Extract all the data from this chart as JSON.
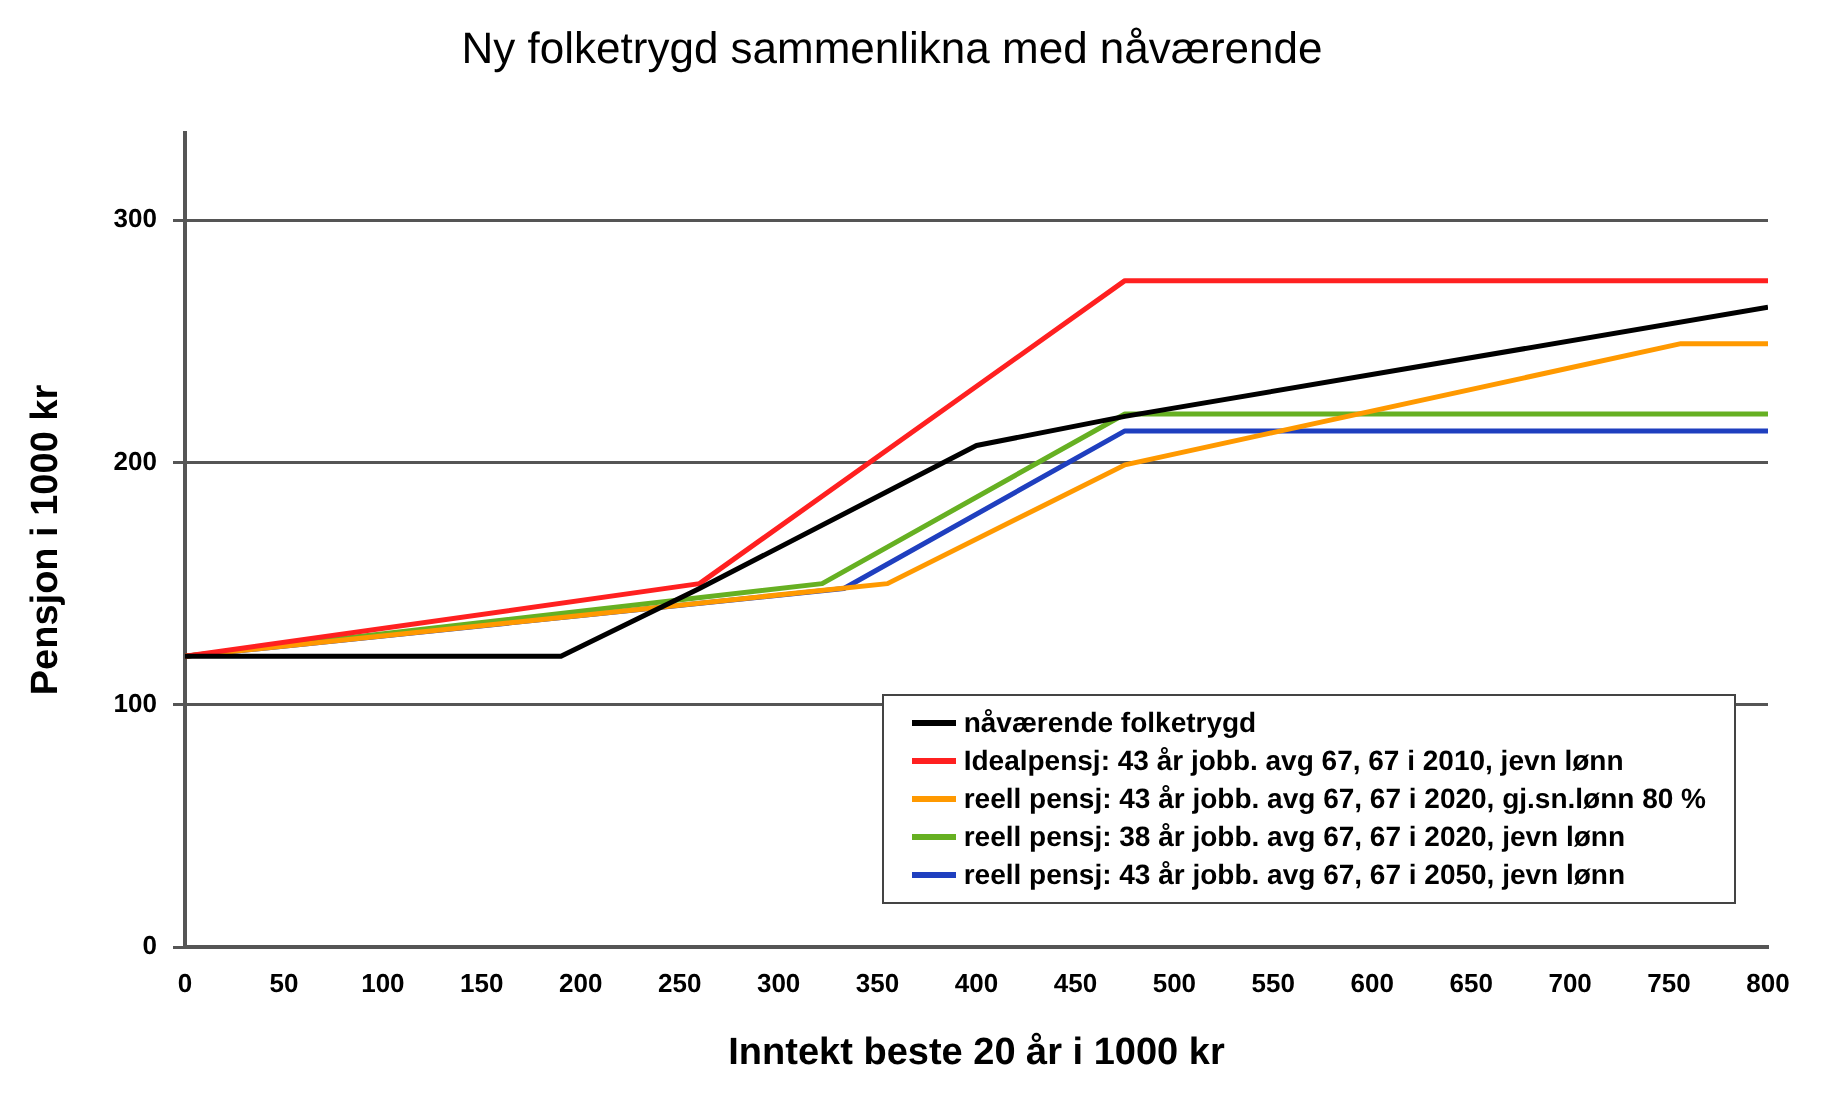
{
  "chart_data": {
    "type": "line",
    "title": "Ny folketrygd sammenlikna med nåværende",
    "xlabel": "Inntekt beste 20 år i 1000 kr",
    "ylabel": "Pensjon i 1000 kr",
    "xlim": [
      0,
      800
    ],
    "xticks": [
      0,
      50,
      100,
      150,
      200,
      250,
      300,
      350,
      400,
      450,
      500,
      550,
      600,
      650,
      700,
      750,
      800
    ],
    "ylim": [
      0,
      336
    ],
    "yticks": [
      0,
      100,
      200,
      300
    ],
    "grid": "y",
    "legend": "bottom right",
    "marker": "none",
    "line_style": "solid",
    "series": [
      {
        "name": "nåværende folketrygd",
        "color": "#000000",
        "x": [
          0,
          190,
          260,
          400,
          475,
          800
        ],
        "values": [
          120,
          120,
          148,
          207,
          219,
          264
        ]
      },
      {
        "name": "Idealpensj: 43 år jobb. avg 67, 67 i 2010, jevn lønn",
        "color": "#ff2020",
        "x": [
          0,
          260,
          475,
          800
        ],
        "values": [
          120,
          150,
          275,
          275
        ]
      },
      {
        "name": "reell pensj: 43 år jobb. avg 67, 67 i 2020, gj.sn.lønn 80 %",
        "color": "#ff9900",
        "x": [
          0,
          355,
          475,
          756,
          800
        ],
        "values": [
          120,
          150,
          199,
          249,
          249
        ]
      },
      {
        "name": "reell pensj: 38 år jobb. avg 67, 67 i 2020, jevn lønn",
        "color": "#66b022",
        "x": [
          0,
          322,
          475,
          800
        ],
        "values": [
          120,
          150,
          220,
          220
        ]
      },
      {
        "name": "reell pensj: 43 år jobb. avg 67, 67 i 2050, jevn lønn",
        "color": "#1f3fbf",
        "x": [
          0,
          333,
          475,
          800
        ],
        "values": [
          120,
          148,
          213,
          213
        ]
      }
    ]
  }
}
